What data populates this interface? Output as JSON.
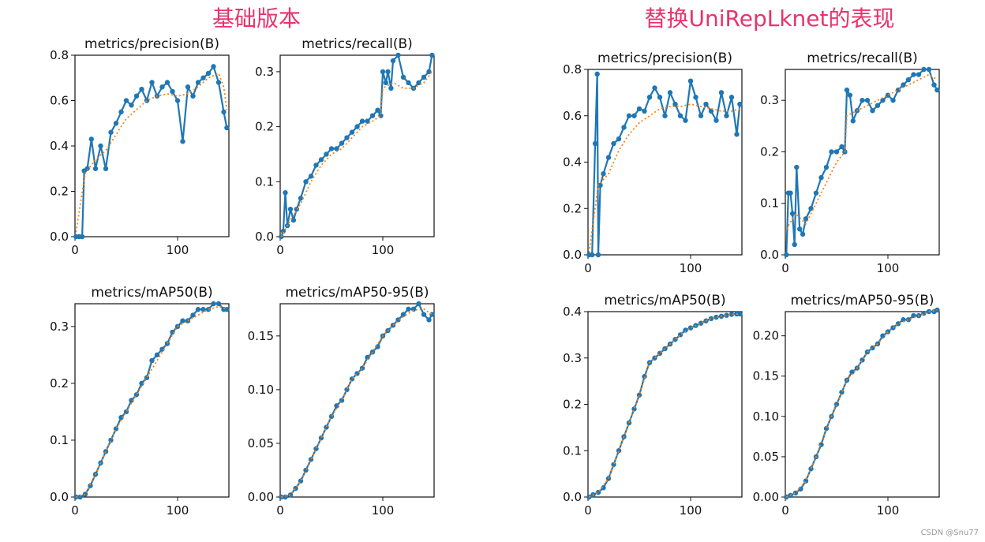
{
  "headings": {
    "left": "基础版本",
    "right": "替换UniRepLknet的表现"
  },
  "watermark": "CSDN @Snu77",
  "colors": {
    "heading": "#e8336d",
    "series": "#1f77b4",
    "smooth": "#ff7f0e"
  },
  "chart_data": [
    {
      "group": "left",
      "type": "line",
      "title": "metrics/precision(B)",
      "xlim": [
        0,
        150
      ],
      "ylim": [
        0,
        0.8
      ],
      "xticks": [
        0,
        100
      ],
      "xtick_labels": [
        "0",
        "100"
      ],
      "yticks": [
        0,
        0.2,
        0.4,
        0.6,
        0.8
      ],
      "ytick_labels": [
        "0.0",
        "0.2",
        "0.4",
        "0.6",
        "0.8"
      ],
      "series": [
        {
          "style": "markers",
          "x": [
            1,
            4,
            7,
            9,
            12,
            16,
            20,
            25,
            30,
            35,
            40,
            45,
            50,
            55,
            60,
            65,
            70,
            75,
            80,
            85,
            90,
            95,
            100,
            105,
            110,
            115,
            120,
            125,
            130,
            135,
            140,
            145,
            148
          ],
          "y": [
            0.0,
            0.0,
            0.0,
            0.29,
            0.3,
            0.43,
            0.3,
            0.4,
            0.3,
            0.46,
            0.5,
            0.55,
            0.6,
            0.58,
            0.62,
            0.65,
            0.6,
            0.68,
            0.62,
            0.66,
            0.68,
            0.64,
            0.6,
            0.42,
            0.66,
            0.62,
            0.68,
            0.7,
            0.72,
            0.75,
            0.68,
            0.55,
            0.48
          ]
        },
        {
          "style": "smooth",
          "x": [
            1,
            10,
            20,
            30,
            40,
            50,
            60,
            70,
            80,
            90,
            100,
            110,
            120,
            130,
            140,
            145,
            148
          ],
          "y": [
            0.02,
            0.28,
            0.34,
            0.38,
            0.45,
            0.52,
            0.56,
            0.6,
            0.62,
            0.63,
            0.62,
            0.63,
            0.66,
            0.7,
            0.72,
            0.66,
            0.56
          ]
        }
      ]
    },
    {
      "group": "left",
      "type": "line",
      "title": "metrics/recall(B)",
      "xlim": [
        0,
        150
      ],
      "ylim": [
        0,
        0.33
      ],
      "xticks": [
        0,
        100
      ],
      "xtick_labels": [
        "0",
        "100"
      ],
      "yticks": [
        0,
        0.1,
        0.2,
        0.3
      ],
      "ytick_labels": [
        "0.0",
        "0.1",
        "0.2",
        "0.3"
      ],
      "series": [
        {
          "style": "markers",
          "x": [
            1,
            3,
            5,
            7,
            10,
            13,
            16,
            20,
            25,
            30,
            35,
            40,
            45,
            50,
            55,
            60,
            65,
            70,
            75,
            80,
            85,
            90,
            95,
            98,
            100,
            103,
            105,
            108,
            110,
            115,
            120,
            125,
            130,
            135,
            140,
            145,
            148
          ],
          "y": [
            0.0,
            0.01,
            0.08,
            0.02,
            0.05,
            0.03,
            0.05,
            0.07,
            0.1,
            0.11,
            0.13,
            0.14,
            0.15,
            0.16,
            0.16,
            0.17,
            0.18,
            0.19,
            0.2,
            0.21,
            0.21,
            0.22,
            0.23,
            0.22,
            0.3,
            0.28,
            0.3,
            0.27,
            0.32,
            0.33,
            0.29,
            0.28,
            0.27,
            0.28,
            0.29,
            0.3,
            0.33
          ]
        },
        {
          "style": "smooth",
          "x": [
            1,
            10,
            20,
            30,
            40,
            50,
            60,
            70,
            80,
            90,
            98,
            100,
            110,
            120,
            130,
            140,
            148
          ],
          "y": [
            0.0,
            0.03,
            0.06,
            0.1,
            0.13,
            0.15,
            0.16,
            0.18,
            0.2,
            0.21,
            0.22,
            0.27,
            0.28,
            0.27,
            0.27,
            0.28,
            0.3
          ]
        }
      ]
    },
    {
      "group": "left",
      "type": "line",
      "title": "metrics/mAP50(B)",
      "xlim": [
        0,
        150
      ],
      "ylim": [
        0,
        0.34
      ],
      "xticks": [
        0,
        100
      ],
      "xtick_labels": [
        "0",
        "100"
      ],
      "yticks": [
        0,
        0.1,
        0.2,
        0.3
      ],
      "ytick_labels": [
        "0.0",
        "0.1",
        "0.2",
        "0.3"
      ],
      "series": [
        {
          "style": "markers",
          "x": [
            1,
            5,
            10,
            15,
            20,
            25,
            30,
            35,
            40,
            45,
            50,
            55,
            60,
            65,
            70,
            75,
            80,
            85,
            90,
            95,
            100,
            105,
            110,
            115,
            120,
            125,
            130,
            135,
            140,
            145,
            148
          ],
          "y": [
            0.0,
            0.0,
            0.005,
            0.02,
            0.04,
            0.06,
            0.08,
            0.1,
            0.12,
            0.14,
            0.15,
            0.17,
            0.18,
            0.2,
            0.21,
            0.24,
            0.25,
            0.26,
            0.27,
            0.29,
            0.3,
            0.31,
            0.31,
            0.32,
            0.33,
            0.33,
            0.33,
            0.34,
            0.34,
            0.33,
            0.33
          ]
        },
        {
          "style": "smooth",
          "x": [
            1,
            10,
            20,
            30,
            40,
            50,
            60,
            70,
            80,
            90,
            100,
            110,
            120,
            130,
            140,
            148
          ],
          "y": [
            0.0,
            0.005,
            0.04,
            0.08,
            0.12,
            0.15,
            0.18,
            0.21,
            0.24,
            0.27,
            0.3,
            0.31,
            0.32,
            0.33,
            0.335,
            0.33
          ]
        }
      ]
    },
    {
      "group": "left",
      "type": "line",
      "title": "metrics/mAP50-95(B)",
      "xlim": [
        0,
        150
      ],
      "ylim": [
        0,
        0.18
      ],
      "xticks": [
        0,
        100
      ],
      "xtick_labels": [
        "0",
        "100"
      ],
      "yticks": [
        0,
        0.05,
        0.1,
        0.15
      ],
      "ytick_labels": [
        "0.00",
        "0.05",
        "0.10",
        "0.15"
      ],
      "series": [
        {
          "style": "markers",
          "x": [
            1,
            5,
            10,
            15,
            20,
            25,
            30,
            35,
            40,
            45,
            50,
            55,
            60,
            65,
            70,
            75,
            80,
            85,
            90,
            95,
            100,
            105,
            110,
            115,
            120,
            125,
            130,
            135,
            140,
            145,
            148
          ],
          "y": [
            0.0,
            0.0,
            0.002,
            0.008,
            0.015,
            0.025,
            0.035,
            0.045,
            0.055,
            0.065,
            0.075,
            0.085,
            0.09,
            0.1,
            0.11,
            0.115,
            0.12,
            0.13,
            0.135,
            0.14,
            0.15,
            0.155,
            0.16,
            0.165,
            0.17,
            0.175,
            0.175,
            0.18,
            0.17,
            0.165,
            0.17
          ]
        },
        {
          "style": "smooth",
          "x": [
            1,
            10,
            20,
            30,
            40,
            50,
            60,
            70,
            80,
            90,
            100,
            110,
            120,
            130,
            140,
            148
          ],
          "y": [
            0.0,
            0.002,
            0.015,
            0.035,
            0.055,
            0.075,
            0.09,
            0.11,
            0.12,
            0.135,
            0.15,
            0.16,
            0.168,
            0.174,
            0.175,
            0.17
          ]
        }
      ]
    },
    {
      "group": "right",
      "type": "line",
      "title": "metrics/precision(B)",
      "xlim": [
        0,
        150
      ],
      "ylim": [
        0,
        0.8
      ],
      "xticks": [
        0,
        100
      ],
      "xtick_labels": [
        "0",
        "100"
      ],
      "yticks": [
        0,
        0.2,
        0.4,
        0.6,
        0.8
      ],
      "ytick_labels": [
        "0.0",
        "0.2",
        "0.4",
        "0.6",
        "0.8"
      ],
      "series": [
        {
          "style": "markers",
          "x": [
            1,
            4,
            7,
            9,
            10,
            12,
            15,
            20,
            25,
            30,
            35,
            40,
            45,
            50,
            55,
            60,
            65,
            70,
            75,
            80,
            85,
            90,
            95,
            100,
            105,
            110,
            115,
            120,
            125,
            130,
            135,
            140,
            145,
            148
          ],
          "y": [
            0.0,
            0.0,
            0.48,
            0.78,
            0.0,
            0.3,
            0.35,
            0.42,
            0.48,
            0.5,
            0.55,
            0.6,
            0.6,
            0.63,
            0.62,
            0.68,
            0.72,
            0.68,
            0.6,
            0.7,
            0.65,
            0.6,
            0.58,
            0.75,
            0.68,
            0.6,
            0.65,
            0.62,
            0.58,
            0.7,
            0.6,
            0.68,
            0.52,
            0.65
          ]
        },
        {
          "style": "smooth",
          "x": [
            1,
            10,
            20,
            30,
            40,
            50,
            60,
            70,
            80,
            90,
            100,
            110,
            120,
            130,
            140,
            148
          ],
          "y": [
            0.01,
            0.3,
            0.35,
            0.45,
            0.52,
            0.57,
            0.6,
            0.63,
            0.64,
            0.64,
            0.65,
            0.64,
            0.63,
            0.62,
            0.62,
            0.63
          ]
        }
      ]
    },
    {
      "group": "right",
      "type": "line",
      "title": "metrics/recall(B)",
      "xlim": [
        0,
        150
      ],
      "ylim": [
        0,
        0.36
      ],
      "xticks": [
        0,
        100
      ],
      "xtick_labels": [
        "0",
        "100"
      ],
      "yticks": [
        0,
        0.1,
        0.2,
        0.3
      ],
      "ytick_labels": [
        "0.0",
        "0.1",
        "0.2",
        "0.3"
      ],
      "series": [
        {
          "style": "markers",
          "x": [
            1,
            3,
            5,
            7,
            9,
            11,
            14,
            17,
            20,
            25,
            30,
            35,
            40,
            45,
            50,
            55,
            58,
            60,
            63,
            66,
            70,
            75,
            80,
            85,
            90,
            95,
            100,
            105,
            110,
            115,
            120,
            125,
            130,
            135,
            140,
            145,
            148
          ],
          "y": [
            0.0,
            0.12,
            0.12,
            0.08,
            0.02,
            0.17,
            0.05,
            0.04,
            0.07,
            0.09,
            0.12,
            0.15,
            0.17,
            0.2,
            0.2,
            0.21,
            0.2,
            0.32,
            0.31,
            0.26,
            0.28,
            0.3,
            0.3,
            0.28,
            0.29,
            0.3,
            0.31,
            0.3,
            0.32,
            0.33,
            0.34,
            0.35,
            0.35,
            0.36,
            0.36,
            0.33,
            0.32
          ]
        },
        {
          "style": "smooth",
          "x": [
            1,
            10,
            20,
            30,
            40,
            50,
            58,
            60,
            70,
            80,
            90,
            100,
            110,
            120,
            130,
            140,
            148
          ],
          "y": [
            0.05,
            0.08,
            0.06,
            0.1,
            0.14,
            0.18,
            0.2,
            0.27,
            0.28,
            0.29,
            0.3,
            0.31,
            0.32,
            0.33,
            0.34,
            0.35,
            0.34
          ]
        }
      ]
    },
    {
      "group": "right",
      "type": "line",
      "title": "metrics/mAP50(B)",
      "xlim": [
        0,
        150
      ],
      "ylim": [
        0,
        0.4
      ],
      "xticks": [
        0,
        100
      ],
      "xtick_labels": [
        "0",
        "100"
      ],
      "yticks": [
        0,
        0.1,
        0.2,
        0.3,
        0.4
      ],
      "ytick_labels": [
        "0.0",
        "0.1",
        "0.2",
        "0.3",
        "0.4"
      ],
      "series": [
        {
          "style": "markers",
          "x": [
            1,
            5,
            10,
            15,
            20,
            25,
            30,
            35,
            40,
            45,
            50,
            55,
            60,
            65,
            70,
            75,
            80,
            85,
            90,
            95,
            100,
            105,
            110,
            115,
            120,
            125,
            130,
            135,
            140,
            145,
            148
          ],
          "y": [
            0.0,
            0.005,
            0.01,
            0.02,
            0.04,
            0.07,
            0.1,
            0.13,
            0.16,
            0.19,
            0.22,
            0.26,
            0.29,
            0.3,
            0.31,
            0.32,
            0.33,
            0.34,
            0.35,
            0.36,
            0.365,
            0.37,
            0.375,
            0.38,
            0.385,
            0.388,
            0.39,
            0.392,
            0.394,
            0.395,
            0.395
          ]
        },
        {
          "style": "smooth",
          "x": [
            1,
            10,
            20,
            30,
            40,
            50,
            60,
            70,
            80,
            90,
            100,
            110,
            120,
            130,
            140,
            148
          ],
          "y": [
            0.0,
            0.01,
            0.04,
            0.1,
            0.16,
            0.22,
            0.29,
            0.31,
            0.33,
            0.35,
            0.365,
            0.375,
            0.385,
            0.39,
            0.394,
            0.395
          ]
        }
      ]
    },
    {
      "group": "right",
      "type": "line",
      "title": "metrics/mAP50-95(B)",
      "xlim": [
        0,
        150
      ],
      "ylim": [
        0,
        0.23
      ],
      "xticks": [
        0,
        100
      ],
      "xtick_labels": [
        "0",
        "100"
      ],
      "yticks": [
        0,
        0.05,
        0.1,
        0.15,
        0.2
      ],
      "ytick_labels": [
        "0.00",
        "0.05",
        "0.10",
        "0.15",
        "0.20"
      ],
      "series": [
        {
          "style": "markers",
          "x": [
            1,
            5,
            10,
            15,
            20,
            25,
            30,
            35,
            40,
            45,
            50,
            55,
            60,
            65,
            70,
            75,
            80,
            85,
            90,
            95,
            100,
            105,
            110,
            115,
            120,
            125,
            130,
            135,
            140,
            145,
            148
          ],
          "y": [
            0.0,
            0.002,
            0.005,
            0.01,
            0.02,
            0.035,
            0.05,
            0.065,
            0.085,
            0.1,
            0.115,
            0.13,
            0.145,
            0.155,
            0.16,
            0.17,
            0.18,
            0.185,
            0.19,
            0.2,
            0.205,
            0.21,
            0.215,
            0.22,
            0.22,
            0.225,
            0.225,
            0.228,
            0.23,
            0.23,
            0.232
          ]
        },
        {
          "style": "smooth",
          "x": [
            1,
            10,
            20,
            30,
            40,
            50,
            60,
            70,
            80,
            90,
            100,
            110,
            120,
            130,
            140,
            148
          ],
          "y": [
            0.0,
            0.005,
            0.02,
            0.05,
            0.085,
            0.115,
            0.145,
            0.16,
            0.18,
            0.19,
            0.205,
            0.215,
            0.22,
            0.225,
            0.23,
            0.232
          ]
        }
      ]
    }
  ]
}
